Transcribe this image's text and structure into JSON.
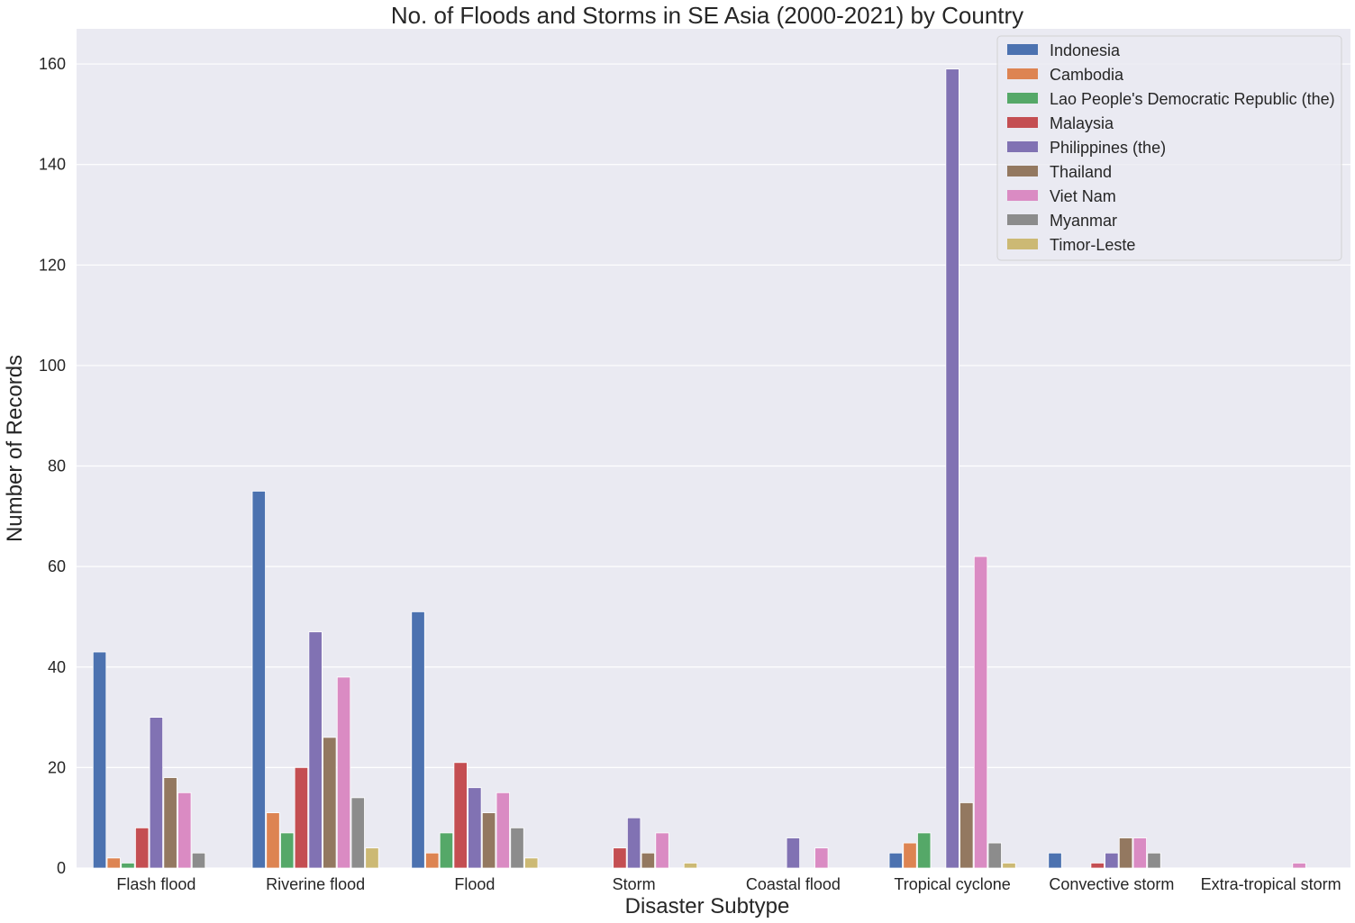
{
  "chart_data": {
    "type": "bar",
    "title": "No. of Floods and Storms in SE Asia (2000-2021) by Country",
    "xlabel": "Disaster Subtype",
    "ylabel": "Number of Records",
    "ylim": [
      0,
      167
    ],
    "yticks": [
      0,
      20,
      40,
      60,
      80,
      100,
      120,
      140,
      160
    ],
    "grid": true,
    "legend_position": "top-right",
    "background_color": "#eaeaf2",
    "categories": [
      "Flash flood",
      "Riverine flood",
      "Flood",
      "Storm",
      "Coastal flood",
      "Tropical cyclone",
      "Convective storm",
      "Extra-tropical storm"
    ],
    "series": [
      {
        "name": "Indonesia",
        "color": "#4c72b0",
        "values": [
          43,
          75,
          51,
          null,
          null,
          3,
          3,
          null
        ]
      },
      {
        "name": "Cambodia",
        "color": "#dd8452",
        "values": [
          2,
          11,
          3,
          null,
          null,
          5,
          null,
          null
        ]
      },
      {
        "name": "Lao People's Democratic Republic (the)",
        "color": "#55a868",
        "values": [
          1,
          7,
          7,
          null,
          null,
          7,
          null,
          null
        ]
      },
      {
        "name": "Malaysia",
        "color": "#c44e52",
        "values": [
          8,
          20,
          21,
          4,
          null,
          null,
          1,
          null
        ]
      },
      {
        "name": "Philippines (the)",
        "color": "#8172b3",
        "values": [
          30,
          47,
          16,
          10,
          6,
          159,
          3,
          null
        ]
      },
      {
        "name": "Thailand",
        "color": "#937860",
        "values": [
          18,
          26,
          11,
          3,
          null,
          13,
          6,
          null
        ]
      },
      {
        "name": "Viet Nam",
        "color": "#da8bc3",
        "values": [
          15,
          38,
          15,
          7,
          4,
          62,
          6,
          1
        ]
      },
      {
        "name": "Myanmar",
        "color": "#8c8c8c",
        "values": [
          3,
          14,
          8,
          null,
          null,
          5,
          3,
          null
        ]
      },
      {
        "name": "Timor-Leste",
        "color": "#ccb974",
        "values": [
          null,
          4,
          2,
          1,
          null,
          1,
          null,
          null
        ]
      }
    ]
  }
}
